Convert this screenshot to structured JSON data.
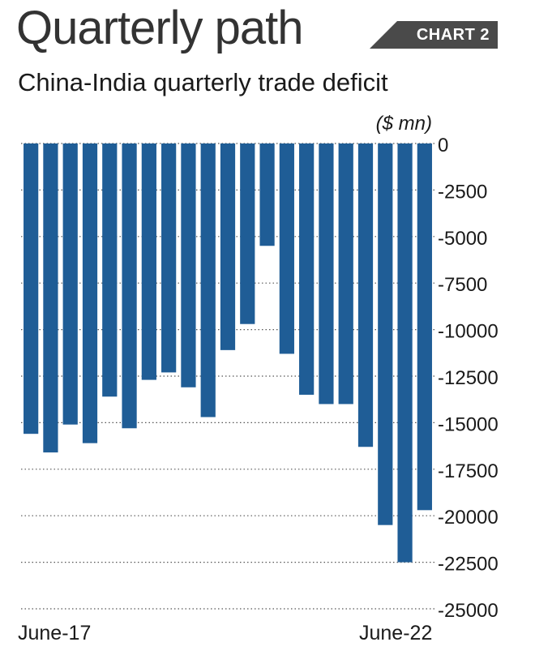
{
  "header": {
    "title": "Quarterly path",
    "badge": "CHART 2",
    "subtitle": "China-India quarterly trade deficit"
  },
  "chart_data": {
    "type": "bar",
    "title": "Quarterly path",
    "subtitle": "China-India quarterly trade deficit",
    "ylabel": "($ mn)",
    "xlabel": "",
    "x_labels": [
      "June-17",
      "June-22"
    ],
    "ylim": [
      -25000,
      0
    ],
    "yticks": [
      0,
      -2500,
      -5000,
      -7500,
      -10000,
      -12500,
      -15000,
      -17500,
      -20000,
      -22500,
      -25000
    ],
    "ytick_labels": [
      "0",
      "-2500",
      "-5000",
      "-7500",
      "-10000",
      "-12500",
      "-15000",
      "-17500",
      "-20000",
      "-22500",
      "-25000"
    ],
    "grid": "dotted horizontal",
    "bar_color": "#1f5d96",
    "values": [
      -15600,
      -16600,
      -15100,
      -16100,
      -13600,
      -15300,
      -12700,
      -12300,
      -13100,
      -14700,
      -11100,
      -9700,
      -5500,
      -11300,
      -13500,
      -14000,
      -14000,
      -16300,
      -20500,
      -22500,
      -19700
    ]
  }
}
